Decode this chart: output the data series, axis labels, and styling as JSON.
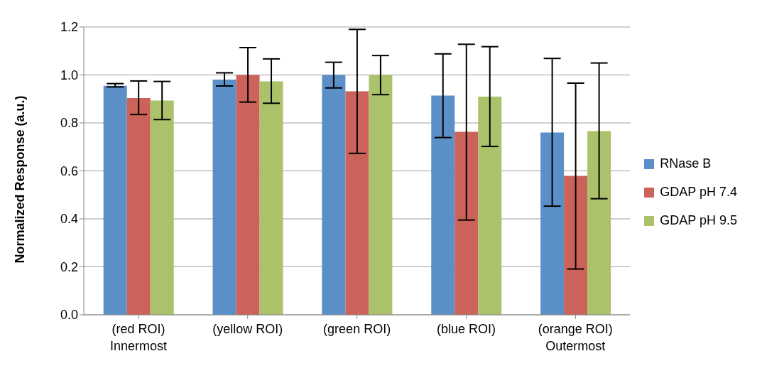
{
  "chart_data": {
    "type": "bar",
    "ylabel": "Normalized Response (a.u.)",
    "categories": [
      "(red ROI)\nInnermost",
      "(yellow ROI)",
      "(green ROI)",
      "(blue ROI)",
      "(orange ROI)\nOutermost"
    ],
    "series": [
      {
        "name": "RNase B",
        "color": "#5b8fc7",
        "values": [
          0.955,
          0.981,
          1.0,
          0.914,
          0.76
        ],
        "errors": [
          [
            0.95,
            0.964
          ],
          [
            0.954,
            1.009
          ],
          [
            0.946,
            1.053
          ],
          [
            0.739,
            1.088
          ],
          [
            0.453,
            1.069
          ]
        ]
      },
      {
        "name": "GDAP pH 7.4",
        "color": "#cc635a",
        "values": [
          0.904,
          1.0,
          0.932,
          0.763,
          0.579
        ],
        "errors": [
          [
            0.835,
            0.975
          ],
          [
            0.887,
            1.114
          ],
          [
            0.673,
            1.19
          ],
          [
            0.395,
            1.128
          ],
          [
            0.191,
            0.966
          ]
        ]
      },
      {
        "name": "GDAP pH 9.5",
        "color": "#acc26a",
        "values": [
          0.893,
          0.973,
          1.0,
          0.91,
          0.766
        ],
        "errors": [
          [
            0.814,
            0.973
          ],
          [
            0.882,
            1.067
          ],
          [
            0.918,
            1.081
          ],
          [
            0.702,
            1.118
          ],
          [
            0.484,
            1.05
          ]
        ]
      }
    ],
    "ylim": [
      0,
      1.2
    ],
    "yticks": [
      {
        "value": 0,
        "label": "0.0"
      },
      {
        "value": 0.2,
        "label": "0.2"
      },
      {
        "value": 0.4,
        "label": "0.4"
      },
      {
        "value": 0.6,
        "label": "0.6"
      },
      {
        "value": 0.8,
        "label": "0.8"
      },
      {
        "value": 1,
        "label": "1.0"
      },
      {
        "value": 1.2,
        "label": "1.2"
      }
    ],
    "grid": "y",
    "legend": "right"
  }
}
